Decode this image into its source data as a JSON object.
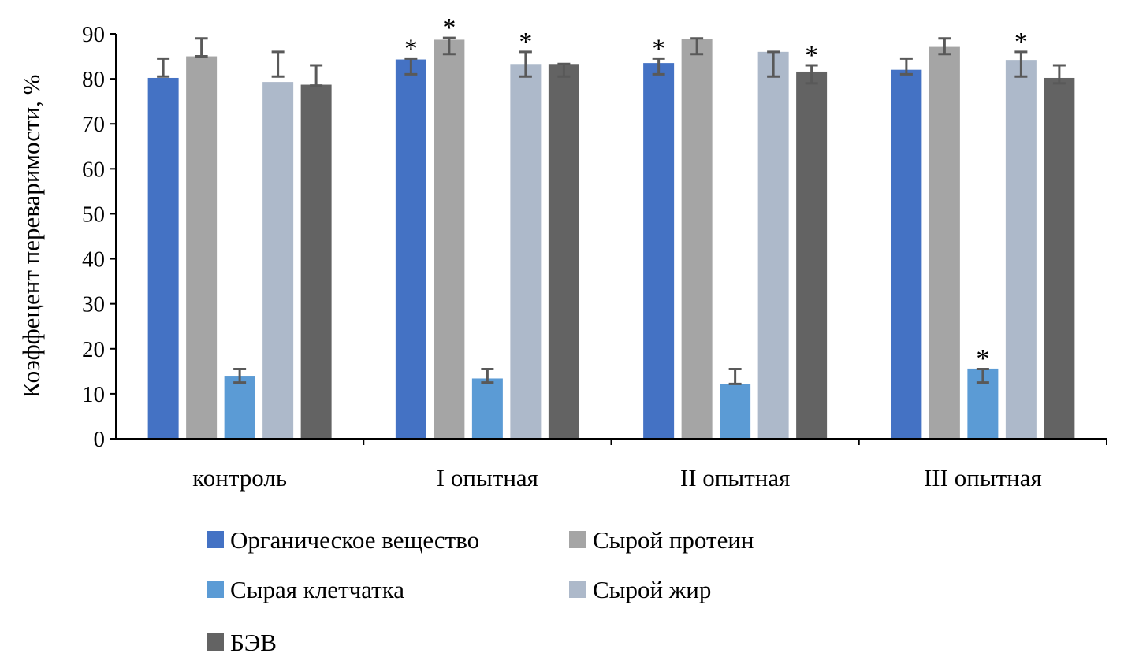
{
  "chart_data": {
    "type": "bar",
    "title": "",
    "xlabel": "",
    "ylabel": "Коэффецент переваримости, %",
    "ylim": [
      0,
      90
    ],
    "yticks": [
      0,
      10,
      20,
      30,
      40,
      50,
      60,
      70,
      80,
      90
    ],
    "grid": false,
    "legend_position": "bottom",
    "categories": [
      "контроль",
      "I опытная",
      "II опытная",
      "III опытная"
    ],
    "significance_marker": "*",
    "series": [
      {
        "name": "Органическое вещество",
        "color": "#4472c4",
        "values": [
          80.2,
          84.3,
          83.5,
          82.0
        ],
        "err_low": [
          80.5,
          81.0,
          81.0,
          81.0
        ],
        "err_high": [
          84.5,
          84.5,
          84.5,
          84.5
        ],
        "significant": [
          false,
          true,
          true,
          false
        ]
      },
      {
        "name": "Сырой протеин",
        "color": "#a5a5a5",
        "values": [
          85.0,
          88.7,
          88.8,
          87.1
        ],
        "err_low": [
          85.0,
          85.5,
          85.5,
          85.5
        ],
        "err_high": [
          89.0,
          89.1,
          89.0,
          89.0
        ],
        "significant": [
          false,
          true,
          false,
          false
        ]
      },
      {
        "name": "Сырая клетчатка",
        "color": "#5b9bd5",
        "values": [
          14.0,
          13.4,
          12.2,
          15.6
        ],
        "err_low": [
          12.5,
          12.5,
          12.2,
          12.5
        ],
        "err_high": [
          15.5,
          15.5,
          15.5,
          15.5
        ],
        "significant": [
          false,
          false,
          false,
          true
        ]
      },
      {
        "name": "Сырой жир",
        "color": "#adb9ca",
        "values": [
          79.3,
          83.3,
          86.0,
          84.2
        ],
        "err_low": [
          80.5,
          80.5,
          80.5,
          80.5
        ],
        "err_high": [
          86.0,
          86.0,
          86.0,
          86.0
        ],
        "significant": [
          false,
          true,
          false,
          true
        ]
      },
      {
        "name": "БЭВ",
        "color": "#636363",
        "values": [
          78.7,
          83.3,
          81.6,
          80.2
        ],
        "err_low": [
          78.5,
          80.5,
          79.0,
          79.0
        ],
        "err_high": [
          83.0,
          83.3,
          83.0,
          83.0
        ],
        "significant": [
          false,
          false,
          true,
          false
        ]
      }
    ]
  }
}
